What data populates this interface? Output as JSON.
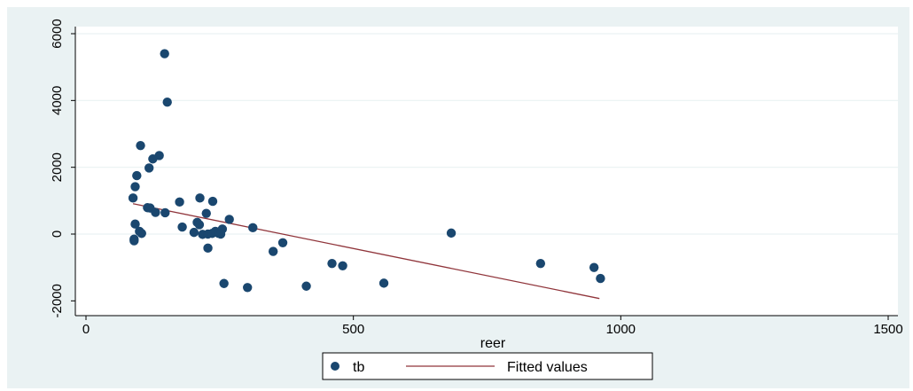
{
  "chart_data": {
    "type": "scatter",
    "xlabel": "reer",
    "ylabel": "",
    "xlim": [
      0,
      1500
    ],
    "ylim": [
      -2000,
      6000
    ],
    "x_ticks": [
      "0",
      "500",
      "1000",
      "1500"
    ],
    "y_ticks": [
      "-2000",
      "0",
      "2000",
      "4000",
      "6000"
    ],
    "x_tick_values": [
      0,
      500,
      1000,
      1500
    ],
    "y_tick_values": [
      -2000,
      0,
      2000,
      4000,
      6000
    ],
    "grid": true,
    "legend_position": "bottom",
    "legend": [
      "tb",
      "Fitted values"
    ],
    "colors": {
      "tb": "#1a476f",
      "fitted": "#90353b",
      "background": "#eaf2f3",
      "plot": "#ffffff"
    },
    "series": [
      {
        "name": "tb",
        "kind": "scatter",
        "points": [
          [
            147,
            5400
          ],
          [
            152,
            3950
          ],
          [
            102,
            2650
          ],
          [
            137,
            2350
          ],
          [
            125,
            2250
          ],
          [
            118,
            1980
          ],
          [
            95,
            1750
          ],
          [
            92,
            1420
          ],
          [
            88,
            1080
          ],
          [
            115,
            790
          ],
          [
            120,
            780
          ],
          [
            130,
            650
          ],
          [
            148,
            640
          ],
          [
            175,
            960
          ],
          [
            213,
            1080
          ],
          [
            237,
            980
          ],
          [
            225,
            620
          ],
          [
            268,
            440
          ],
          [
            92,
            300
          ],
          [
            100,
            80
          ],
          [
            104,
            20
          ],
          [
            90,
            -150
          ],
          [
            90,
            -200
          ],
          [
            180,
            210
          ],
          [
            208,
            350
          ],
          [
            212,
            280
          ],
          [
            202,
            50
          ],
          [
            218,
            -10
          ],
          [
            228,
            0
          ],
          [
            236,
            20
          ],
          [
            242,
            80
          ],
          [
            248,
            20
          ],
          [
            255,
            150
          ],
          [
            252,
            0
          ],
          [
            312,
            190
          ],
          [
            228,
            -420
          ],
          [
            368,
            -260
          ],
          [
            350,
            -520
          ],
          [
            460,
            -880
          ],
          [
            480,
            -950
          ],
          [
            683,
            30
          ],
          [
            258,
            -1480
          ],
          [
            302,
            -1600
          ],
          [
            412,
            -1560
          ],
          [
            557,
            -1470
          ],
          [
            850,
            -880
          ],
          [
            950,
            -1000
          ],
          [
            962,
            -1330
          ]
        ]
      },
      {
        "name": "Fitted values",
        "kind": "line",
        "points": [
          [
            88,
            910
          ],
          [
            960,
            -1930
          ]
        ]
      }
    ]
  }
}
